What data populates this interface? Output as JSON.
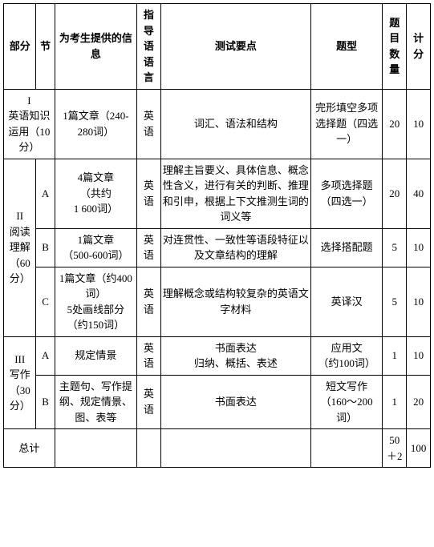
{
  "header": {
    "part": "部分",
    "section": "节",
    "info": "为考生提供的信息",
    "lang": "指导语语言",
    "point": "测试要点",
    "type": "题型",
    "qty": "题目数量",
    "score": "计分"
  },
  "r1": {
    "part": "I\n英语知识运用（10分）",
    "info": "1篇文章（240-280词）",
    "lang": "英语",
    "point": "词汇、语法和结构",
    "type": "完形填空多项选择题（四选一）",
    "qty": "20",
    "score": "10"
  },
  "r2": {
    "part": "II\n阅读理解（60分）",
    "sec": "A",
    "info": "4篇文章\n（共约\n1 600词）",
    "lang": "英语",
    "point": "理解主旨要义、具体信息、概念性含义，进行有关的判断、推理和引申，根据上下文推测生词的词义等",
    "type": "多项选择题（四选一）",
    "qty": "20",
    "score": "40"
  },
  "r3": {
    "sec": "B",
    "info": "1篇文章\n（500-600词）",
    "lang": "英语",
    "point": "对连贯性、一致性等语段特征以及文章结构的理解",
    "type": "选择搭配题",
    "qty": "5",
    "score": "10"
  },
  "r4": {
    "sec": "C",
    "info": "1篇文章（约400词）\n5处画线部分（约150词）",
    "lang": "英语",
    "point": "理解概念或结构较复杂的英语文字材料",
    "type": "英译汉",
    "qty": "5",
    "score": "10"
  },
  "r5": {
    "part": "III\n写作（30分）",
    "sec": "A",
    "info": "规定情景",
    "lang": "英语",
    "point": "书面表达\n归纳、概括、表述",
    "type": "应用文\n（约100词）",
    "qty": "1",
    "score": "10"
  },
  "r6": {
    "sec": "B",
    "info": "主题句、写作提纲、规定情景、图、表等",
    "lang": "英语",
    "point": "书面表达",
    "type": "短文写作（160～200词）",
    "qty": "1",
    "score": "20"
  },
  "total": {
    "label": "总计",
    "qty": "50＋2",
    "score": "100"
  }
}
